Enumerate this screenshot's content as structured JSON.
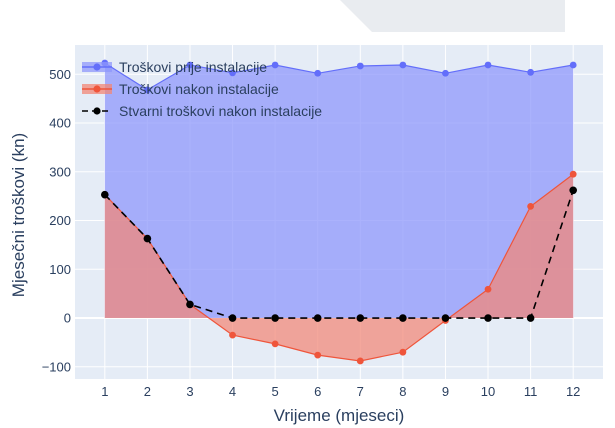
{
  "chart_data": {
    "type": "area",
    "xlabel": "Vrijeme (mjeseci)",
    "ylabel": "Mjesečni troškovi (kn)",
    "xlim": [
      0.3,
      12.7
    ],
    "ylim": [
      -125,
      560
    ],
    "x_ticks": [
      1,
      2,
      3,
      4,
      5,
      6,
      7,
      8,
      9,
      10,
      11,
      12
    ],
    "y_ticks": [
      -100,
      0,
      100,
      200,
      300,
      400,
      500
    ],
    "y_tick_labels": [
      "−100",
      "0",
      "100",
      "200",
      "300",
      "400",
      "500"
    ],
    "grid": true,
    "legend_position": "top-left",
    "plot_background": "#e5ecf6",
    "x": [
      1,
      2,
      3,
      4,
      5,
      6,
      7,
      8,
      9,
      10,
      11,
      12
    ],
    "series": [
      {
        "name": "Troškovi prije instalacije",
        "values": [
          523,
          468,
          519,
          503,
          519,
          502,
          517,
          519,
          502,
          519,
          504,
          519
        ],
        "line_color": "#636efa",
        "fill_color": "#8f98fb",
        "fill": "tozeroy",
        "dash": "solid"
      },
      {
        "name": "Troškovi nakon instalacije",
        "values": [
          253,
          163,
          28,
          -35,
          -53,
          -76,
          -88,
          -70,
          -5,
          59,
          229,
          295
        ],
        "line_color": "#ef553b",
        "fill_color": "#f28776",
        "fill": "tozeroy",
        "dash": "solid"
      },
      {
        "name": "Stvarni troškovi nakon instalacije",
        "values": [
          253,
          163,
          28,
          0,
          0,
          0,
          0,
          0,
          0,
          0,
          0,
          262
        ],
        "line_color": "#000000",
        "fill": "none",
        "dash": "dash"
      }
    ]
  }
}
